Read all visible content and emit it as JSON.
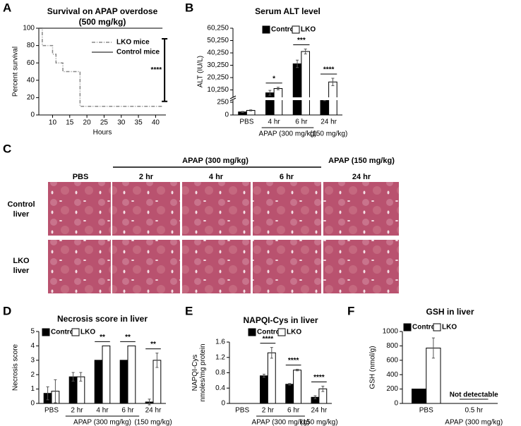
{
  "panels": [
    "A",
    "B",
    "C",
    "D",
    "E",
    "F"
  ],
  "histology": {
    "groups": [
      "APAP (300 mg/kg)",
      "APAP (150 mg/kg)"
    ],
    "columns": [
      "PBS",
      "2 hr",
      "4 hr",
      "6 hr",
      "24 hr"
    ],
    "rows": [
      [
        "Control",
        "liver"
      ],
      [
        "LKO",
        "liver"
      ]
    ]
  },
  "chart_data": [
    {
      "type": "line",
      "title": "Survival on APAP overdose",
      "subtitle": "(500 mg/kg)",
      "xlabel": "Hours",
      "ylabel": "Percent survival",
      "xlim": [
        6,
        43
      ],
      "xticks": [
        10,
        15,
        20,
        25,
        30,
        35,
        40
      ],
      "ylim": [
        0,
        100
      ],
      "yticks": [
        0,
        20,
        40,
        60,
        80,
        100
      ],
      "series": [
        {
          "name": "LKO mice",
          "color": "#888888",
          "style": "dash-dot",
          "x": [
            6,
            7,
            7,
            10,
            10,
            11,
            11,
            13,
            13,
            18,
            18,
            42
          ],
          "values": [
            100,
            100,
            80,
            80,
            70,
            70,
            60,
            60,
            50,
            50,
            10,
            10
          ]
        },
        {
          "name": "Control mice",
          "color": "#555555",
          "style": "solid",
          "x": [
            6,
            42
          ],
          "values": [
            100,
            100
          ]
        }
      ],
      "annotations": [
        {
          "text": "****"
        }
      ]
    },
    {
      "type": "bar",
      "title": "Serum ALT  level",
      "ylabel": "ALT (IU/L)",
      "ylim": [
        0,
        60250
      ],
      "axis_break": 250,
      "yticks": [
        0,
        250,
        {
          "value": 10250,
          "label": "10,250"
        },
        {
          "value": 20250,
          "label": "20,250"
        },
        {
          "value": 30250,
          "label": "30,250"
        },
        {
          "value": 40250,
          "label": "40,250"
        },
        {
          "value": 50250,
          "label": "50,250"
        },
        {
          "value": 60250,
          "label": "60,250"
        }
      ],
      "categories": [
        "PBS",
        "4 hr",
        "6 hr",
        "24 hr"
      ],
      "series": [
        {
          "name": "Control",
          "color": "#000000",
          "values": [
            60,
            7900,
            31400,
            2000
          ],
          "errors": [
            10,
            2000,
            3000,
            500
          ]
        },
        {
          "name": "LKO",
          "color": "#ffffff",
          "values": [
            90,
            11400,
            41400,
            16700
          ],
          "errors": [
            10,
            1000,
            2000,
            3000
          ]
        }
      ],
      "groups": [
        {
          "label": "APAP (300 mg/kg)",
          "from": 1,
          "to": 2
        },
        {
          "label": "(150 mg/kg)",
          "from": 3,
          "to": 3
        }
      ],
      "annotations": [
        {
          "category": 1,
          "text": "*"
        },
        {
          "category": 2,
          "text": "***"
        },
        {
          "category": 3,
          "text": "****"
        }
      ]
    },
    {
      "type": "bar",
      "title": "Necrosis score in liver",
      "ylabel": "Necrosis score",
      "ylim": [
        0,
        5
      ],
      "yticks": [
        0,
        1,
        2,
        3,
        4,
        5
      ],
      "categories": [
        "PBS",
        "2 hr",
        "4 hr",
        "6 hr",
        "24 hr"
      ],
      "series": [
        {
          "name": "Control",
          "color": "#000000",
          "values": [
            0.7,
            1.85,
            3,
            3,
            0.1
          ],
          "errors": [
            0.45,
            0.3,
            0,
            0,
            0.2
          ]
        },
        {
          "name": "LKO",
          "color": "#ffffff",
          "values": [
            0.85,
            1.85,
            4,
            4,
            3
          ],
          "errors": [
            0.8,
            0.3,
            0,
            0,
            0.5
          ]
        }
      ],
      "groups": [
        {
          "label": "APAP (300 mg/kg)",
          "from": 1,
          "to": 3
        },
        {
          "label": "(150 mg/kg)",
          "from": 4,
          "to": 4
        }
      ],
      "annotations": [
        {
          "category": 2,
          "text": "**"
        },
        {
          "category": 3,
          "text": "**"
        },
        {
          "category": 4,
          "text": "**"
        }
      ]
    },
    {
      "type": "bar",
      "title": "NAPQI-Cys in liver",
      "ylabel": [
        "NAPQI-Cys",
        "nmoles/mg protein"
      ],
      "ylim": [
        0,
        1.6
      ],
      "yticks": [
        0,
        0.4,
        0.8,
        1.2,
        1.6
      ],
      "categories": [
        "PBS",
        "2 hr",
        "6 hr",
        "24 hr"
      ],
      "series": [
        {
          "name": "Control",
          "color": "#000000",
          "values": [
            0,
            0.72,
            0.5,
            0.16
          ],
          "errors": [
            0,
            0.04,
            0.02,
            0.04
          ]
        },
        {
          "name": "LKO",
          "color": "#ffffff",
          "values": [
            0,
            1.32,
            0.87,
            0.38
          ],
          "errors": [
            0,
            0.14,
            0.02,
            0.07
          ]
        }
      ],
      "groups": [
        {
          "label": "APAP (300 mg/kg)",
          "from": 1,
          "to": 2
        },
        {
          "label": "(150 mg/kg)",
          "from": 3,
          "to": 3
        }
      ],
      "annotations": [
        {
          "category": 1,
          "text": "****"
        },
        {
          "category": 2,
          "text": "****"
        },
        {
          "category": 3,
          "text": "****"
        }
      ]
    },
    {
      "type": "bar",
      "title": "GSH in liver",
      "ylabel": "GSH (nmol/g)",
      "ylim": [
        0,
        1000
      ],
      "yticks": [
        0,
        200,
        400,
        600,
        800,
        1000
      ],
      "categories": [
        "PBS",
        "0.5 hr"
      ],
      "series": [
        {
          "name": "Control",
          "color": "#000000",
          "values": [
            200,
            null
          ],
          "errors": [
            0,
            null
          ]
        },
        {
          "name": "LKO",
          "color": "#ffffff",
          "values": [
            770,
            null
          ],
          "errors": [
            140,
            null
          ]
        }
      ],
      "groups": [
        {
          "label": "APAP (300 mg/kg)",
          "from": 1,
          "to": 1
        }
      ],
      "annotations": [
        {
          "category": 1,
          "text": "Not detectable"
        }
      ]
    }
  ]
}
